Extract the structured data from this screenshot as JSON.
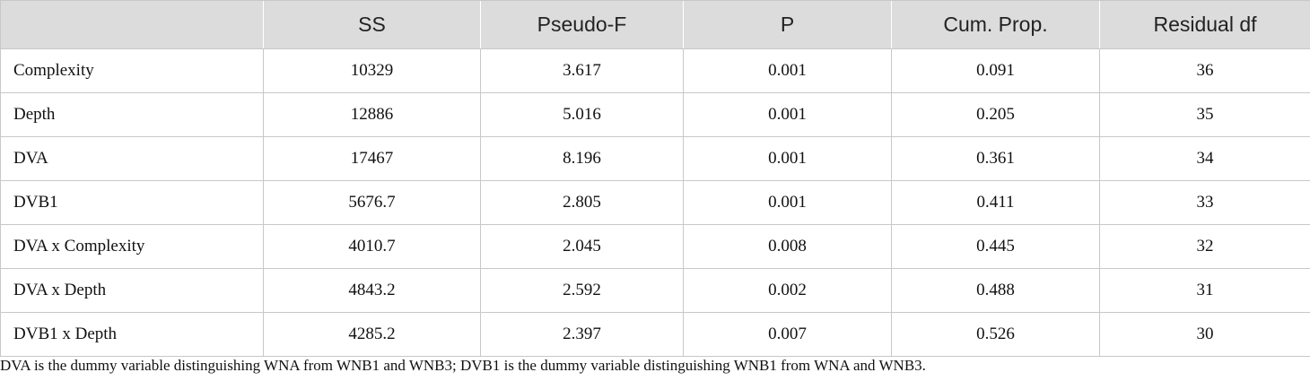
{
  "table": {
    "headers": [
      "",
      "SS",
      "Pseudo-F",
      "P",
      "Cum. Prop.",
      "Residual df"
    ],
    "rows": [
      [
        "Complexity",
        "10329",
        "3.617",
        "0.001",
        "0.091",
        "36"
      ],
      [
        "Depth",
        "12886",
        "5.016",
        "0.001",
        "0.205",
        "35"
      ],
      [
        "DVA",
        "17467",
        "8.196",
        "0.001",
        "0.361",
        "34"
      ],
      [
        "DVB1",
        "5676.7",
        "2.805",
        "0.001",
        "0.411",
        "33"
      ],
      [
        "DVA x Complexity",
        "4010.7",
        "2.045",
        "0.008",
        "0.445",
        "32"
      ],
      [
        "DVA x Depth",
        "4843.2",
        "2.592",
        "0.002",
        "0.488",
        "31"
      ],
      [
        "DVB1 x Depth",
        "4285.2",
        "2.397",
        "0.007",
        "0.526",
        "30"
      ]
    ]
  },
  "footnote": "DVA is the dummy variable distinguishing WNA from WNB1 and WNB3; DVB1 is the dummy variable distinguishing WNB1 from WNA and WNB3."
}
